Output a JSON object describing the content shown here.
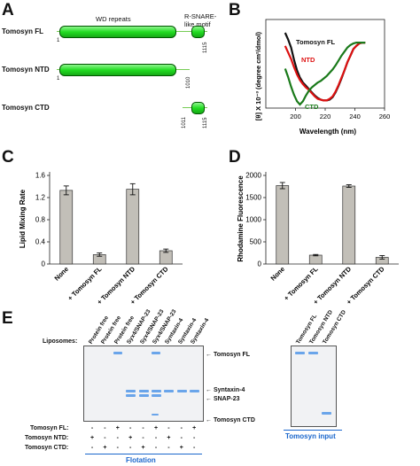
{
  "panels": {
    "a": "A",
    "b": "B",
    "c": "C",
    "d": "D",
    "e": "E"
  },
  "panel_a": {
    "rows": [
      {
        "name": "Tomosyn FL",
        "start": "1",
        "end": "1115"
      },
      {
        "name": "Tomosyn NTD",
        "start": "1",
        "end": "1010"
      },
      {
        "name": "Tomosyn CTD",
        "start": "1011",
        "end": "1115"
      }
    ],
    "labels": {
      "wd": "WD repeats",
      "rsnare_1": "R-SNARE-",
      "rsnare_2": "like motif"
    },
    "colors": {
      "domain": "#22dd22",
      "outline": "#005500",
      "line": "#77cc55"
    }
  },
  "chart_data": [
    {
      "type": "line",
      "panel": "B",
      "xlabel": "Wavelength (nm)",
      "ylabel": "[θ] X 10⁻³ (degree cm²/dmol)",
      "xlim": [
        180,
        260
      ],
      "xticks": [
        200,
        220,
        240,
        260
      ],
      "series": [
        {
          "name": "Tomosyn FL",
          "color": "#111111",
          "x": [
            193,
            195,
            197,
            199,
            201,
            203,
            205,
            207,
            209,
            211,
            213,
            215,
            217,
            219,
            221,
            223,
            225,
            227,
            229,
            231,
            233,
            235,
            237,
            239,
            241,
            243,
            245,
            247
          ],
          "y": [
            88,
            80,
            70,
            55,
            42,
            33,
            27,
            23,
            19,
            15,
            11,
            8,
            6,
            5,
            5,
            6,
            9,
            15,
            23,
            32,
            42,
            52,
            60,
            68,
            72,
            75,
            76,
            76
          ]
        },
        {
          "name": "NTD",
          "color": "#dd1111",
          "x": [
            193,
            195,
            197,
            199,
            201,
            203,
            205,
            207,
            209,
            211,
            213,
            215,
            217,
            219,
            221,
            223,
            225,
            227,
            229,
            231,
            233,
            235,
            237,
            239,
            241,
            243,
            245,
            247
          ],
          "y": [
            72,
            64,
            56,
            46,
            37,
            30,
            25,
            21,
            18,
            14,
            10,
            7,
            6,
            5,
            5,
            7,
            10,
            16,
            24,
            33,
            42,
            52,
            60,
            68,
            72,
            75,
            76,
            76
          ]
        },
        {
          "name": "CTD",
          "color": "#1a7a1a",
          "x": [
            193,
            195,
            197,
            199,
            201,
            203,
            205,
            207,
            209,
            211,
            213,
            215,
            217,
            219,
            221,
            223,
            225,
            227,
            229,
            231,
            233,
            235,
            237,
            239,
            241,
            243,
            245,
            247
          ],
          "y": [
            44,
            34,
            22,
            12,
            4,
            0,
            4,
            11,
            17,
            21,
            24,
            27,
            29,
            32,
            35,
            39,
            43,
            48,
            54,
            60,
            65,
            70,
            73,
            75,
            76,
            76,
            76,
            76
          ]
        }
      ]
    },
    {
      "type": "bar",
      "panel": "C",
      "ylabel": "Lipid Mixing Rate",
      "ylim": [
        0,
        1.6
      ],
      "yticks": [
        "0",
        "0.4",
        "0.8",
        "1.2",
        "1.6"
      ],
      "categories": [
        "None",
        "+ Tomosyn FL",
        "+ Tomosyn NTD",
        "+ Tomosyn CTD"
      ],
      "values": [
        1.33,
        0.17,
        1.35,
        0.24
      ],
      "errors": [
        0.08,
        0.03,
        0.1,
        0.03
      ]
    },
    {
      "type": "bar",
      "panel": "D",
      "ylabel": "Rhodamine Fluorescence",
      "ylim": [
        0,
        2000
      ],
      "yticks": [
        "0",
        "500",
        "1000",
        "1500",
        "2000"
      ],
      "categories": [
        "None",
        "+ Tomosyn FL",
        "+ Tomosyn NTD",
        "+ Tomosyn CTD"
      ],
      "values": [
        1770,
        200,
        1760,
        150
      ],
      "errors": [
        70,
        15,
        30,
        40
      ]
    }
  ],
  "panel_e": {
    "liposomes_label": "Liposomes:",
    "lanes": [
      "Protein free",
      "Protein free",
      "Protein free",
      "Syx4/SNAP-23",
      "Syx4/SNAP-23",
      "Syx4/SNAP-23",
      "Syntaxin-4",
      "Syntaxin-4",
      "Syntaxin-4"
    ],
    "band_labels": [
      "Tomosyn FL",
      "Syntaxin-4",
      "SNAP-23",
      "Tomosyn CTD"
    ],
    "row_labels": [
      "Tomosyn FL:",
      "Tomosyn NTD:",
      "Tomosyn CTD:"
    ],
    "signs": [
      [
        "-",
        "-",
        "+",
        "-",
        "-",
        "+",
        "-",
        "-",
        "+"
      ],
      [
        "+",
        "-",
        "-",
        "+",
        "-",
        "-",
        "+",
        "-",
        "-"
      ],
      [
        "-",
        "+",
        "-",
        "-",
        "+",
        "-",
        "-",
        "+",
        "-"
      ]
    ],
    "flotation_label": "Flotation",
    "input_lanes": [
      "Tomosyn FL",
      "Tomosyn NTD",
      "Tomosyn CTD"
    ],
    "input_label": "Tomosyn input",
    "colors": {
      "band": "#6aa5ea",
      "caption": "#1a66cc"
    }
  }
}
